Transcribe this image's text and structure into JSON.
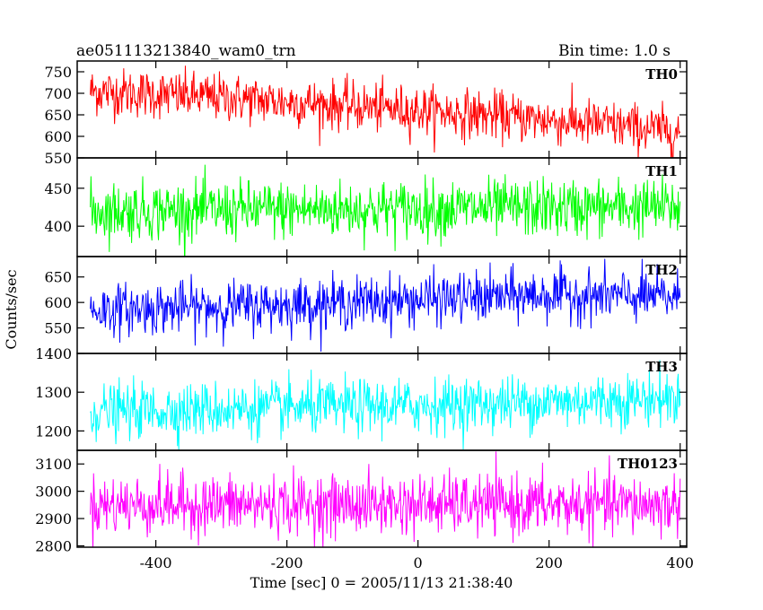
{
  "header": {
    "title": "ae051113213840_wam0_trn",
    "bin_time": "Bin time: 1.0 s"
  },
  "chart_data": {
    "type": "line",
    "title": "ae051113213840_wam0_trn",
    "xlabel": "Time [sec] 0 = 2005/11/13 21:38:40",
    "ylabel": "Counts/sec",
    "xlim": [
      -520,
      410
    ],
    "x_ticks": [
      -400,
      -200,
      0,
      200,
      400
    ],
    "x_range": [
      -500,
      400
    ],
    "bin_time_s": 1.0,
    "panels": [
      {
        "name": "TH0",
        "color": "#ff0000",
        "ylim": [
          550,
          775
        ],
        "y_ticks": [
          550,
          600,
          650,
          700,
          750
        ],
        "trend": [
          [
            -500,
            705
          ],
          [
            -300,
            690
          ],
          [
            -100,
            670
          ],
          [
            100,
            650
          ],
          [
            300,
            625
          ],
          [
            400,
            610
          ]
        ],
        "noise_sd": 28
      },
      {
        "name": "TH1",
        "color": "#00ff00",
        "ylim": [
          360,
          490
        ],
        "y_ticks": [
          400,
          450
        ],
        "trend": [
          [
            -500,
            420
          ],
          [
            400,
            425
          ]
        ],
        "noise_sd": 19
      },
      {
        "name": "TH2",
        "color": "#0000ff",
        "ylim": [
          500,
          690
        ],
        "y_ticks": [
          550,
          600,
          650
        ],
        "trend": [
          [
            -500,
            585
          ],
          [
            -200,
            595
          ],
          [
            0,
            605
          ],
          [
            200,
            615
          ],
          [
            400,
            610
          ]
        ],
        "noise_sd": 25
      },
      {
        "name": "TH3",
        "color": "#00ffff",
        "ylim": [
          1150,
          1400
        ],
        "y_ticks": [
          1200,
          1300,
          1400
        ],
        "trend": [
          [
            -500,
            1250
          ],
          [
            0,
            1265
          ],
          [
            400,
            1285
          ]
        ],
        "noise_sd": 35
      },
      {
        "name": "TH0123",
        "color": "#ff00ff",
        "ylim": [
          2795,
          3150
        ],
        "y_ticks": [
          2800,
          2900,
          3000,
          3100
        ],
        "trend": [
          [
            -500,
            2950
          ],
          [
            400,
            2950
          ]
        ],
        "noise_sd": 55
      }
    ]
  }
}
